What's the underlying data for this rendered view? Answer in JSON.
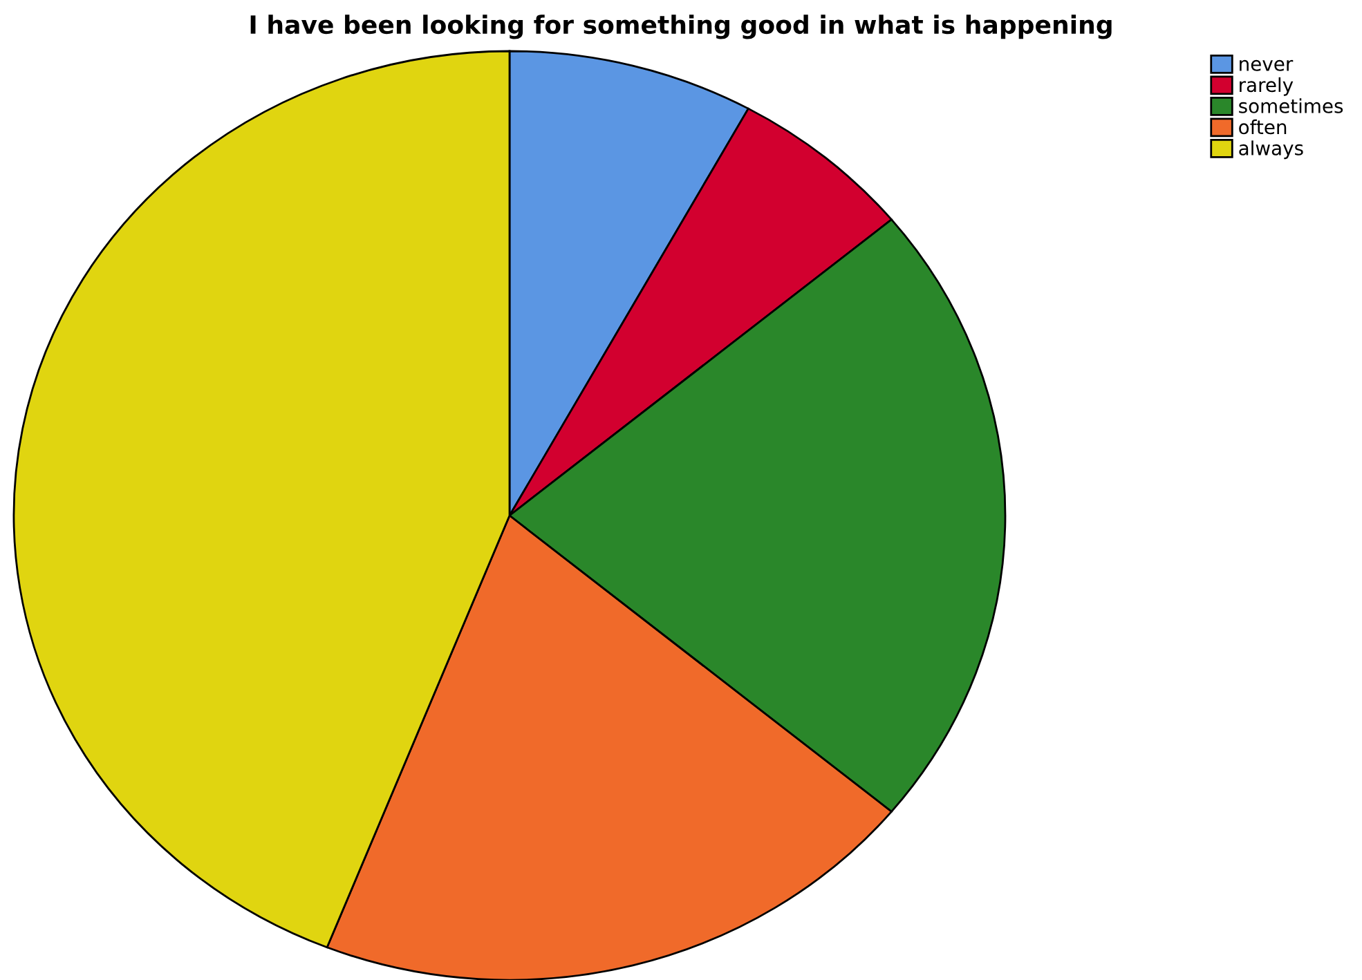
{
  "chart_data": {
    "type": "pie",
    "title": "I have been looking for something good in what is happening",
    "categories": [
      "never",
      "rarely",
      "sometimes",
      "often",
      "always"
    ],
    "values": [
      8,
      6,
      22,
      20,
      44
    ],
    "colors": [
      "#5b96e3",
      "#d2002f",
      "#2a872a",
      "#f06a2a",
      "#e0d510"
    ],
    "legend": "top right"
  }
}
